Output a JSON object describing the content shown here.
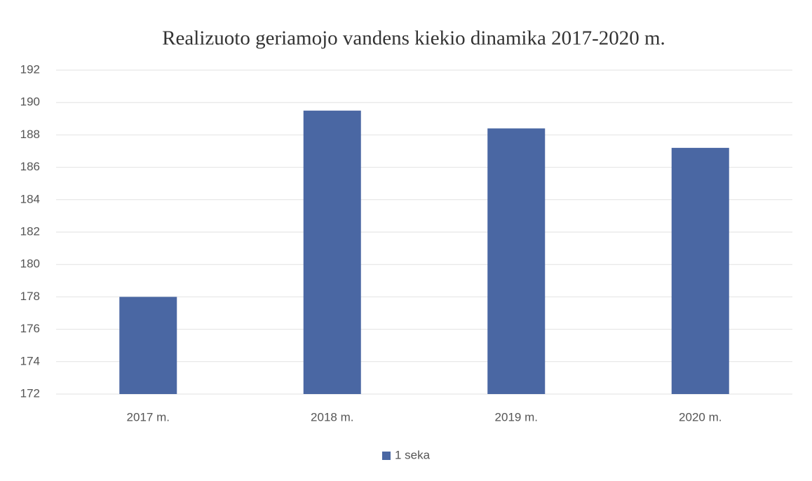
{
  "chart_data": {
    "type": "bar",
    "title": "Realizuoto geriamojo vandens kiekio dinamika 2017-2020  m.",
    "categories": [
      "2017 m.",
      "2018 m.",
      "2019 m.",
      "2020 m."
    ],
    "series": [
      {
        "name": "1 seka",
        "color": "#4a67a3",
        "values": [
          178,
          189.5,
          188.4,
          187.2
        ]
      }
    ],
    "ylim": [
      172,
      192
    ],
    "yticks": [
      172,
      174,
      176,
      178,
      180,
      182,
      184,
      186,
      188,
      190,
      192
    ],
    "grid": true,
    "legend": "bottom"
  }
}
